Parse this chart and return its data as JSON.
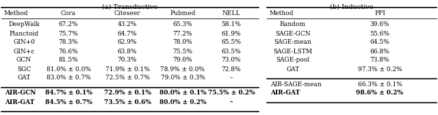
{
  "title_a": "(a) Transductive",
  "title_b": "(b) Inductive",
  "trans_headers": [
    "Method",
    "Cora",
    "Citeseer",
    "Pubmed",
    "NELL"
  ],
  "trans_rows": [
    [
      "DeepWalk",
      "67.2%",
      "43.2%",
      "65.3%",
      "58.1%"
    ],
    [
      "Planctoid",
      "75.7%",
      "64.7%",
      "77.2%",
      "61.9%"
    ],
    [
      "GIN+0",
      "78.3%",
      "62.9%",
      "78.0%",
      "65.5%"
    ],
    [
      "GIN+ε",
      "76.6%",
      "63.8%",
      "75.5%",
      "63.5%"
    ],
    [
      "GCN",
      "81.5%",
      "70.3%",
      "79.0%",
      "73.0%"
    ],
    [
      "SGC",
      "81.0% ± 0.0%",
      "71.9% ± 0.1%",
      "78.9% ± 0.0%",
      "72.8%"
    ],
    [
      "GAT",
      "83.0% ± 0.7%",
      "72.5% ± 0.7%",
      "79.0% ± 0.3%",
      "–"
    ]
  ],
  "trans_bold_rows": [
    [
      "AIR-GCN",
      "84.7% ± 0.1%",
      "72.9% ± 0.1%",
      "80.0% ± 0.1%",
      "75.5% ± 0.2%"
    ],
    [
      "AIR-GAT",
      "84.5% ± 0.7%",
      "73.5% ± 0.6%",
      "80.0% ± 0.2%",
      "–"
    ]
  ],
  "ind_headers": [
    "Method",
    "PPI"
  ],
  "ind_rows": [
    [
      "Random",
      "39.6%"
    ],
    [
      "SAGE-GCN",
      "55.6%"
    ],
    [
      "SAGE-mean",
      "64.5%"
    ],
    [
      "SAGE-LSTM",
      "66.8%"
    ],
    [
      "SAGE-pool",
      "73.8%"
    ],
    [
      "GAT",
      "97.3% ± 0.2%"
    ]
  ],
  "ind_bold_rows": [
    [
      "AIR-SAGE-mean",
      "66.3% ± 0.1%"
    ],
    [
      "AIR-GAT",
      "98.6% ± 0.2%"
    ]
  ],
  "background": "#ffffff",
  "fontsize": 6.5,
  "title_fontsize": 7.0
}
